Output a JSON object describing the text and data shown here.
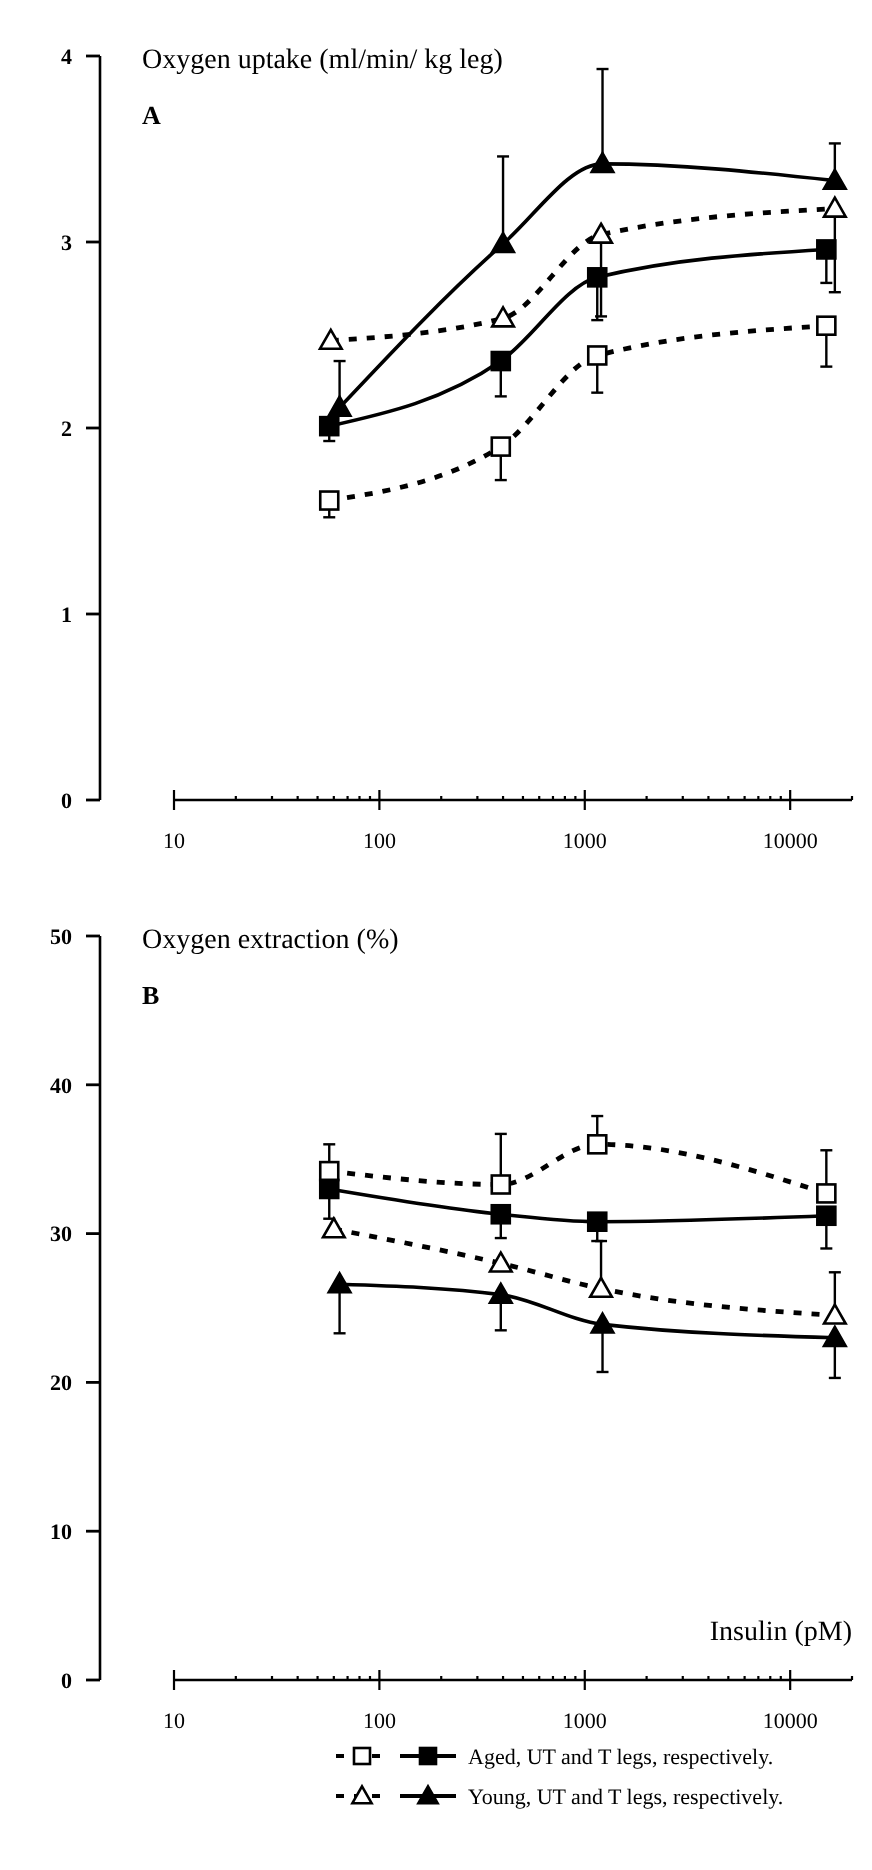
{
  "chart_data": [
    {
      "type": "line",
      "ylabel": "Oxygen uptake (ml/min/ kg leg)",
      "annotations": [
        "A"
      ],
      "log": "x",
      "xlim": [
        10,
        20000
      ],
      "xticks": [
        10,
        {
          "value": 20,
          "label": null
        },
        {
          "value": 30,
          "label": null
        },
        {
          "value": 40,
          "label": null
        },
        {
          "value": 50,
          "label": null
        },
        {
          "value": 60,
          "label": null
        },
        {
          "value": 70,
          "label": null
        },
        {
          "value": 80,
          "label": null
        },
        {
          "value": 90,
          "label": null
        },
        100,
        {
          "value": 200,
          "label": null
        },
        {
          "value": 300,
          "label": null
        },
        {
          "value": 400,
          "label": null
        },
        {
          "value": 500,
          "label": null
        },
        {
          "value": 600,
          "label": null
        },
        {
          "value": 700,
          "label": null
        },
        {
          "value": 800,
          "label": null
        },
        {
          "value": 900,
          "label": null
        },
        1000,
        {
          "value": 2000,
          "label": null
        },
        {
          "value": 3000,
          "label": null
        },
        {
          "value": 4000,
          "label": null
        },
        {
          "value": 5000,
          "label": null
        },
        {
          "value": 6000,
          "label": null
        },
        {
          "value": 7000,
          "label": null
        },
        {
          "value": 8000,
          "label": null
        },
        {
          "value": 9000,
          "label": null
        },
        10000,
        {
          "value": 20000,
          "label": null
        }
      ],
      "ylim": [
        0,
        4
      ],
      "yticks": [
        0,
        1,
        2,
        3,
        4
      ],
      "grid": false,
      "legend": false,
      "series": [
        {
          "color": "#000000",
          "marker": "square",
          "line_style": "dashed",
          "x": [
            57,
            390,
            1150,
            15000
          ],
          "values": [
            1.61,
            1.9,
            2.39,
            2.55
          ],
          "errors": [
            [
              1.52,
              1.61
            ],
            [
              1.72,
              1.9
            ],
            [
              2.19,
              2.39
            ],
            [
              2.33,
              2.55
            ]
          ]
        },
        {
          "color": "#000000",
          "marker": "square",
          "line_style": "solid",
          "x": [
            57,
            390,
            1150,
            15000
          ],
          "values": [
            2.01,
            2.36,
            2.81,
            2.96
          ],
          "errors": [
            [
              1.93,
              2.01
            ],
            [
              2.17,
              2.36
            ],
            [
              2.58,
              2.81
            ],
            [
              2.78,
              2.96
            ]
          ]
        },
        {
          "color": "#000000",
          "marker": "triangle",
          "line_style": "dashed",
          "x": [
            58,
            400,
            1200,
            16500
          ],
          "values": [
            2.47,
            2.59,
            3.04,
            3.18
          ],
          "errors": [
            null,
            null,
            [
              2.6,
              3.04
            ],
            [
              2.73,
              3.18
            ]
          ]
        },
        {
          "color": "#000000",
          "marker": "triangle",
          "line_style": "solid",
          "x": [
            64,
            400,
            1220,
            16500
          ],
          "values": [
            2.11,
            2.99,
            3.42,
            3.33
          ],
          "errors": [
            [
              2.11,
              2.36
            ],
            [
              2.99,
              3.46
            ],
            [
              3.42,
              3.93
            ],
            [
              3.33,
              3.53
            ]
          ]
        }
      ]
    },
    {
      "type": "line",
      "ylabel": "Oxygen extraction (%)",
      "xlabel": "Insulin (pM)",
      "annotations": [
        "B"
      ],
      "log": "x",
      "xlim": [
        10,
        20000
      ],
      "xticks": [
        10,
        {
          "value": 20,
          "label": null
        },
        {
          "value": 30,
          "label": null
        },
        {
          "value": 40,
          "label": null
        },
        {
          "value": 50,
          "label": null
        },
        {
          "value": 60,
          "label": null
        },
        {
          "value": 70,
          "label": null
        },
        {
          "value": 80,
          "label": null
        },
        {
          "value": 90,
          "label": null
        },
        100,
        {
          "value": 200,
          "label": null
        },
        {
          "value": 300,
          "label": null
        },
        {
          "value": 400,
          "label": null
        },
        {
          "value": 500,
          "label": null
        },
        {
          "value": 600,
          "label": null
        },
        {
          "value": 700,
          "label": null
        },
        {
          "value": 800,
          "label": null
        },
        {
          "value": 900,
          "label": null
        },
        1000,
        {
          "value": 2000,
          "label": null
        },
        {
          "value": 3000,
          "label": null
        },
        {
          "value": 4000,
          "label": null
        },
        {
          "value": 5000,
          "label": null
        },
        {
          "value": 6000,
          "label": null
        },
        {
          "value": 7000,
          "label": null
        },
        {
          "value": 8000,
          "label": null
        },
        {
          "value": 9000,
          "label": null
        },
        10000,
        {
          "value": 20000,
          "label": null
        }
      ],
      "ylim": [
        0,
        50
      ],
      "yticks": [
        0,
        10,
        20,
        30,
        40,
        50
      ],
      "grid": false,
      "legend": "bottom",
      "series": [
        {
          "color": "#000000",
          "marker": "square",
          "line_style": "dashed",
          "x": [
            57,
            390,
            1150,
            15000
          ],
          "values": [
            34.2,
            33.3,
            36,
            32.7
          ],
          "errors": [
            [
              34.2,
              36
            ],
            [
              33.3,
              36.7
            ],
            [
              36,
              37.9
            ],
            [
              32.7,
              35.6
            ]
          ]
        },
        {
          "name": "Aged, UT and T legs, respectively.",
          "color": "#000000",
          "marker": "square",
          "line_style": "solid",
          "x": [
            57,
            390,
            1150,
            15000
          ],
          "values": [
            33,
            31.3,
            30.8,
            31.2
          ],
          "errors": [
            [
              31,
              33
            ],
            [
              29.7,
              31.3
            ],
            [
              29.5,
              30.8
            ],
            [
              29,
              31.2
            ]
          ]
        },
        {
          "color": "#000000",
          "marker": "triangle",
          "line_style": "dashed",
          "x": [
            60,
            390,
            1200,
            16500
          ],
          "values": [
            30.3,
            28,
            26.3,
            24.5
          ],
          "errors": [
            null,
            null,
            [
              26.3,
              29.5
            ],
            [
              24.5,
              27.4
            ]
          ]
        },
        {
          "name": "Young, UT and T legs, respectively.",
          "color": "#000000",
          "marker": "triangle",
          "line_style": "solid",
          "x": [
            64,
            390,
            1220,
            16500
          ],
          "values": [
            26.6,
            25.9,
            23.9,
            23
          ],
          "errors": [
            [
              23.3,
              26.6
            ],
            [
              23.5,
              25.9
            ],
            [
              20.7,
              23.9
            ],
            [
              20.3,
              23
            ]
          ]
        }
      ]
    }
  ]
}
